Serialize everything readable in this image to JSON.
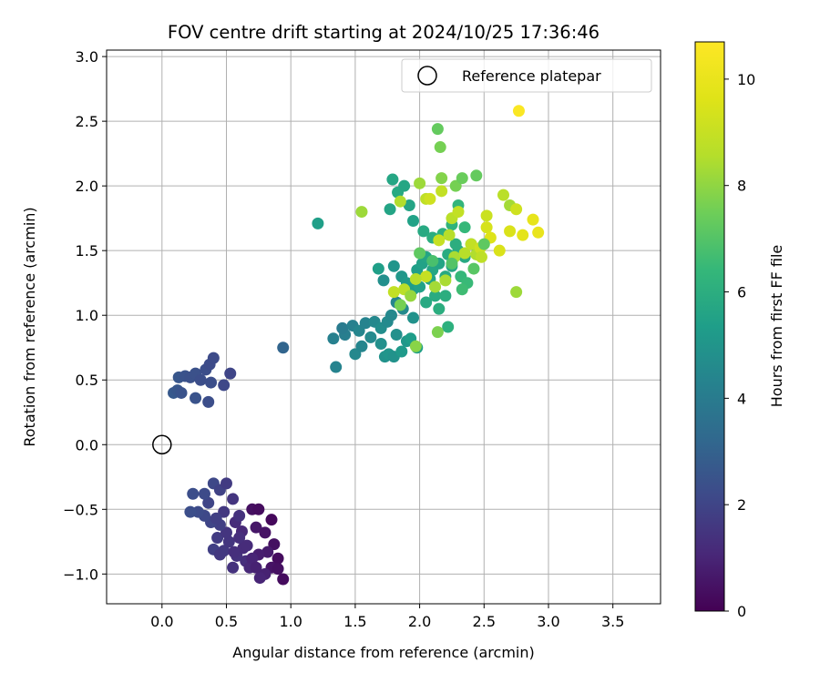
{
  "chart_data": {
    "type": "scatter",
    "title": "FOV centre drift starting at 2024/10/25 17:36:46",
    "xlabel": "Angular distance from reference (arcmin)",
    "ylabel": "Rotation from reference (arcmin)",
    "xlim": [
      -0.43,
      3.87
    ],
    "ylim": [
      -1.23,
      3.05
    ],
    "xticks": [
      "0.0",
      "0.5",
      "1.0",
      "1.5",
      "2.0",
      "2.5",
      "3.0",
      "3.5"
    ],
    "xtick_values": [
      0,
      0.5,
      1.0,
      1.5,
      2.0,
      2.5,
      3.0,
      3.5
    ],
    "yticks": [
      "−1.0",
      "−0.5",
      "0.0",
      "0.5",
      "1.0",
      "1.5",
      "2.0",
      "2.5",
      "3.0"
    ],
    "ytick_values": [
      -1.0,
      -0.5,
      0,
      0.5,
      1.0,
      1.5,
      2.0,
      2.5,
      3.0
    ],
    "grid": true,
    "legend": {
      "placement": "top-right",
      "entries": [
        "Reference platepar"
      ]
    },
    "reference_point": {
      "x": 0,
      "y": 0
    },
    "colorbar": {
      "label": "Hours from first FF file",
      "colormap": "viridis",
      "range": [
        0,
        10.7
      ],
      "ticks": [
        "0",
        "2",
        "4",
        "6",
        "8",
        "10"
      ],
      "tick_values": [
        0,
        2,
        4,
        6,
        8,
        10
      ]
    },
    "points": [
      {
        "x": 0.57,
        "y": -0.6,
        "c": 1.2
      },
      {
        "x": 0.62,
        "y": -0.67,
        "c": 1.1
      },
      {
        "x": 0.7,
        "y": -0.5,
        "c": 0.4
      },
      {
        "x": 0.75,
        "y": -0.5,
        "c": 0.3
      },
      {
        "x": 0.85,
        "y": -0.58,
        "c": 0.2
      },
      {
        "x": 0.73,
        "y": -0.64,
        "c": 0.6
      },
      {
        "x": 0.8,
        "y": -0.68,
        "c": 0.5
      },
      {
        "x": 0.87,
        "y": -0.77,
        "c": 0.4
      },
      {
        "x": 0.9,
        "y": -0.88,
        "c": 0.3
      },
      {
        "x": 0.85,
        "y": -0.95,
        "c": 0.5
      },
      {
        "x": 0.9,
        "y": -0.96,
        "c": 0.4
      },
      {
        "x": 0.94,
        "y": -1.04,
        "c": 0.3
      },
      {
        "x": 0.8,
        "y": -1.0,
        "c": 0.9
      },
      {
        "x": 0.76,
        "y": -1.03,
        "c": 1.0
      },
      {
        "x": 0.82,
        "y": -0.83,
        "c": 0.7
      },
      {
        "x": 0.75,
        "y": -0.85,
        "c": 0.8
      },
      {
        "x": 0.65,
        "y": -0.9,
        "c": 1.3
      },
      {
        "x": 0.55,
        "y": -0.95,
        "c": 1.4
      },
      {
        "x": 0.48,
        "y": -0.82,
        "c": 1.6
      },
      {
        "x": 0.4,
        "y": -0.81,
        "c": 1.8
      },
      {
        "x": 0.43,
        "y": -0.72,
        "c": 1.7
      },
      {
        "x": 0.52,
        "y": -0.75,
        "c": 1.5
      },
      {
        "x": 0.58,
        "y": -0.86,
        "c": 1.4
      },
      {
        "x": 0.63,
        "y": -0.8,
        "c": 1.2
      },
      {
        "x": 0.68,
        "y": -0.95,
        "c": 1.1
      },
      {
        "x": 0.6,
        "y": -0.72,
        "c": 1.3
      },
      {
        "x": 0.5,
        "y": -0.68,
        "c": 1.5
      },
      {
        "x": 0.45,
        "y": -0.62,
        "c": 1.8
      },
      {
        "x": 0.38,
        "y": -0.6,
        "c": 2.0
      },
      {
        "x": 0.33,
        "y": -0.55,
        "c": 2.1
      },
      {
        "x": 0.28,
        "y": -0.52,
        "c": 2.2
      },
      {
        "x": 0.22,
        "y": -0.52,
        "c": 2.3
      },
      {
        "x": 0.36,
        "y": -0.45,
        "c": 2.0
      },
      {
        "x": 0.4,
        "y": -0.3,
        "c": 2.1
      },
      {
        "x": 0.45,
        "y": -0.35,
        "c": 1.9
      },
      {
        "x": 0.33,
        "y": -0.38,
        "c": 2.2
      },
      {
        "x": 0.24,
        "y": -0.38,
        "c": 2.3
      },
      {
        "x": 0.5,
        "y": -0.3,
        "c": 1.7
      },
      {
        "x": 0.55,
        "y": -0.42,
        "c": 1.5
      },
      {
        "x": 0.48,
        "y": -0.52,
        "c": 1.6
      },
      {
        "x": 0.42,
        "y": -0.57,
        "c": 1.8
      },
      {
        "x": 0.6,
        "y": -0.55,
        "c": 1.4
      },
      {
        "x": 0.66,
        "y": -0.78,
        "c": 1.2
      },
      {
        "x": 0.7,
        "y": -0.88,
        "c": 1.0
      },
      {
        "x": 0.73,
        "y": -0.95,
        "c": 0.9
      },
      {
        "x": 0.56,
        "y": -0.83,
        "c": 1.3
      },
      {
        "x": 0.45,
        "y": -0.85,
        "c": 1.6
      },
      {
        "x": 0.09,
        "y": 0.4,
        "c": 2.7
      },
      {
        "x": 0.12,
        "y": 0.42,
        "c": 2.6
      },
      {
        "x": 0.15,
        "y": 0.4,
        "c": 2.5
      },
      {
        "x": 0.13,
        "y": 0.52,
        "c": 2.6
      },
      {
        "x": 0.18,
        "y": 0.53,
        "c": 2.5
      },
      {
        "x": 0.22,
        "y": 0.52,
        "c": 2.4
      },
      {
        "x": 0.26,
        "y": 0.55,
        "c": 2.4
      },
      {
        "x": 0.3,
        "y": 0.5,
        "c": 2.3
      },
      {
        "x": 0.34,
        "y": 0.58,
        "c": 2.3
      },
      {
        "x": 0.37,
        "y": 0.62,
        "c": 2.2
      },
      {
        "x": 0.4,
        "y": 0.67,
        "c": 2.2
      },
      {
        "x": 0.38,
        "y": 0.48,
        "c": 2.3
      },
      {
        "x": 0.48,
        "y": 0.46,
        "c": 2.1
      },
      {
        "x": 0.53,
        "y": 0.55,
        "c": 2.0
      },
      {
        "x": 0.26,
        "y": 0.36,
        "c": 2.5
      },
      {
        "x": 0.36,
        "y": 0.33,
        "c": 2.3
      },
      {
        "x": 0.94,
        "y": 0.75,
        "c": 3.1
      },
      {
        "x": 1.21,
        "y": 1.71,
        "c": 5.4
      },
      {
        "x": 1.35,
        "y": 0.6,
        "c": 4.3
      },
      {
        "x": 1.33,
        "y": 0.82,
        "c": 4.2
      },
      {
        "x": 1.42,
        "y": 0.85,
        "c": 4.1
      },
      {
        "x": 1.4,
        "y": 0.9,
        "c": 4.0
      },
      {
        "x": 1.48,
        "y": 0.92,
        "c": 4.2
      },
      {
        "x": 1.53,
        "y": 0.88,
        "c": 4.4
      },
      {
        "x": 1.58,
        "y": 0.94,
        "c": 4.3
      },
      {
        "x": 1.5,
        "y": 0.7,
        "c": 4.5
      },
      {
        "x": 1.55,
        "y": 0.76,
        "c": 4.4
      },
      {
        "x": 1.62,
        "y": 0.83,
        "c": 4.6
      },
      {
        "x": 1.65,
        "y": 0.95,
        "c": 4.5
      },
      {
        "x": 1.7,
        "y": 0.78,
        "c": 4.8
      },
      {
        "x": 1.73,
        "y": 0.68,
        "c": 4.9
      },
      {
        "x": 1.76,
        "y": 0.7,
        "c": 5.0
      },
      {
        "x": 1.8,
        "y": 0.68,
        "c": 4.9
      },
      {
        "x": 1.7,
        "y": 0.9,
        "c": 4.7
      },
      {
        "x": 1.75,
        "y": 0.95,
        "c": 4.6
      },
      {
        "x": 1.82,
        "y": 0.85,
        "c": 4.8
      },
      {
        "x": 1.86,
        "y": 0.72,
        "c": 5.2
      },
      {
        "x": 1.9,
        "y": 0.8,
        "c": 5.1
      },
      {
        "x": 1.95,
        "y": 0.98,
        "c": 4.9
      },
      {
        "x": 1.93,
        "y": 0.82,
        "c": 5.3
      },
      {
        "x": 1.98,
        "y": 0.75,
        "c": 5.4
      },
      {
        "x": 1.78,
        "y": 1.0,
        "c": 4.5
      },
      {
        "x": 1.82,
        "y": 1.1,
        "c": 4.4
      },
      {
        "x": 1.87,
        "y": 1.05,
        "c": 4.6
      },
      {
        "x": 1.72,
        "y": 1.27,
        "c": 4.8
      },
      {
        "x": 1.8,
        "y": 1.38,
        "c": 5.0
      },
      {
        "x": 1.86,
        "y": 1.3,
        "c": 5.1
      },
      {
        "x": 1.9,
        "y": 1.25,
        "c": 5.2
      },
      {
        "x": 1.95,
        "y": 1.2,
        "c": 5.3
      },
      {
        "x": 1.98,
        "y": 1.35,
        "c": 5.4
      },
      {
        "x": 2.02,
        "y": 1.4,
        "c": 5.5
      },
      {
        "x": 2.05,
        "y": 1.45,
        "c": 5.6
      },
      {
        "x": 2.1,
        "y": 1.35,
        "c": 5.7
      },
      {
        "x": 2.15,
        "y": 1.4,
        "c": 5.6
      },
      {
        "x": 2.2,
        "y": 1.3,
        "c": 5.8
      },
      {
        "x": 2.25,
        "y": 1.38,
        "c": 5.7
      },
      {
        "x": 2.3,
        "y": 1.5,
        "c": 5.9
      },
      {
        "x": 2.35,
        "y": 1.45,
        "c": 5.8
      },
      {
        "x": 2.28,
        "y": 1.55,
        "c": 6.0
      },
      {
        "x": 2.22,
        "y": 1.47,
        "c": 5.9
      },
      {
        "x": 2.08,
        "y": 1.28,
        "c": 5.6
      },
      {
        "x": 2.0,
        "y": 1.22,
        "c": 5.5
      },
      {
        "x": 2.12,
        "y": 1.15,
        "c": 5.9
      },
      {
        "x": 2.2,
        "y": 1.15,
        "c": 6.0
      },
      {
        "x": 2.22,
        "y": 0.91,
        "c": 6.1
      },
      {
        "x": 2.15,
        "y": 1.05,
        "c": 6.0
      },
      {
        "x": 2.05,
        "y": 1.1,
        "c": 5.8
      },
      {
        "x": 1.68,
        "y": 1.36,
        "c": 5.4
      },
      {
        "x": 1.77,
        "y": 1.82,
        "c": 5.6
      },
      {
        "x": 1.79,
        "y": 2.05,
        "c": 5.7
      },
      {
        "x": 1.83,
        "y": 1.95,
        "c": 5.8
      },
      {
        "x": 1.88,
        "y": 2.0,
        "c": 5.7
      },
      {
        "x": 1.92,
        "y": 1.85,
        "c": 5.6
      },
      {
        "x": 1.95,
        "y": 1.73,
        "c": 5.5
      },
      {
        "x": 2.03,
        "y": 1.65,
        "c": 5.8
      },
      {
        "x": 2.1,
        "y": 1.6,
        "c": 6.0
      },
      {
        "x": 2.18,
        "y": 1.63,
        "c": 6.1
      },
      {
        "x": 2.25,
        "y": 1.7,
        "c": 6.2
      },
      {
        "x": 2.3,
        "y": 1.85,
        "c": 6.3
      },
      {
        "x": 2.35,
        "y": 1.68,
        "c": 6.4
      },
      {
        "x": 2.4,
        "y": 1.55,
        "c": 6.5
      },
      {
        "x": 2.45,
        "y": 1.5,
        "c": 6.6
      },
      {
        "x": 2.32,
        "y": 1.3,
        "c": 6.4
      },
      {
        "x": 2.37,
        "y": 1.25,
        "c": 6.5
      },
      {
        "x": 2.33,
        "y": 1.2,
        "c": 6.6
      },
      {
        "x": 2.14,
        "y": 2.44,
        "c": 7.3
      },
      {
        "x": 2.16,
        "y": 2.3,
        "c": 7.6
      },
      {
        "x": 2.17,
        "y": 2.06,
        "c": 7.8
      },
      {
        "x": 2.28,
        "y": 2.0,
        "c": 7.6
      },
      {
        "x": 2.33,
        "y": 2.06,
        "c": 7.4
      },
      {
        "x": 2.44,
        "y": 2.08,
        "c": 7.3
      },
      {
        "x": 2.0,
        "y": 2.02,
        "c": 8.2
      },
      {
        "x": 2.05,
        "y": 1.9,
        "c": 8.8
      },
      {
        "x": 2.08,
        "y": 1.9,
        "c": 9.2
      },
      {
        "x": 2.17,
        "y": 1.96,
        "c": 8.9
      },
      {
        "x": 1.55,
        "y": 1.8,
        "c": 8.2
      },
      {
        "x": 1.85,
        "y": 1.88,
        "c": 8.5
      },
      {
        "x": 2.25,
        "y": 1.75,
        "c": 8.7
      },
      {
        "x": 2.3,
        "y": 1.8,
        "c": 8.9
      },
      {
        "x": 2.23,
        "y": 1.62,
        "c": 8.6
      },
      {
        "x": 2.15,
        "y": 1.58,
        "c": 9.0
      },
      {
        "x": 2.27,
        "y": 1.45,
        "c": 8.4
      },
      {
        "x": 2.35,
        "y": 1.48,
        "c": 8.6
      },
      {
        "x": 2.4,
        "y": 1.55,
        "c": 8.9
      },
      {
        "x": 2.44,
        "y": 1.47,
        "c": 8.5
      },
      {
        "x": 2.47,
        "y": 1.52,
        "c": 9.2
      },
      {
        "x": 2.52,
        "y": 1.68,
        "c": 9.4
      },
      {
        "x": 2.55,
        "y": 1.6,
        "c": 9.6
      },
      {
        "x": 2.62,
        "y": 1.5,
        "c": 9.5
      },
      {
        "x": 2.52,
        "y": 1.77,
        "c": 9.1
      },
      {
        "x": 2.65,
        "y": 1.93,
        "c": 8.7
      },
      {
        "x": 2.7,
        "y": 1.85,
        "c": 8.3
      },
      {
        "x": 2.75,
        "y": 1.82,
        "c": 9.2
      },
      {
        "x": 2.7,
        "y": 1.65,
        "c": 9.5
      },
      {
        "x": 2.8,
        "y": 1.62,
        "c": 9.8
      },
      {
        "x": 2.88,
        "y": 1.74,
        "c": 9.9
      },
      {
        "x": 2.92,
        "y": 1.64,
        "c": 10.0
      },
      {
        "x": 2.75,
        "y": 1.18,
        "c": 8.2
      },
      {
        "x": 2.48,
        "y": 1.45,
        "c": 8.8
      },
      {
        "x": 2.2,
        "y": 1.27,
        "c": 8.4
      },
      {
        "x": 2.12,
        "y": 1.22,
        "c": 8.3
      },
      {
        "x": 2.05,
        "y": 1.3,
        "c": 9.0
      },
      {
        "x": 1.97,
        "y": 1.28,
        "c": 8.6
      },
      {
        "x": 1.88,
        "y": 1.2,
        "c": 8.7
      },
      {
        "x": 1.8,
        "y": 1.18,
        "c": 8.9
      },
      {
        "x": 1.93,
        "y": 1.15,
        "c": 8.1
      },
      {
        "x": 2.14,
        "y": 0.87,
        "c": 7.7
      },
      {
        "x": 1.97,
        "y": 0.76,
        "c": 7.9
      },
      {
        "x": 1.85,
        "y": 1.08,
        "c": 7.6
      },
      {
        "x": 2.0,
        "y": 1.48,
        "c": 7.2
      },
      {
        "x": 2.1,
        "y": 1.42,
        "c": 6.8
      },
      {
        "x": 2.25,
        "y": 1.4,
        "c": 7.0
      },
      {
        "x": 2.42,
        "y": 1.36,
        "c": 7.1
      },
      {
        "x": 2.5,
        "y": 1.55,
        "c": 7.2
      },
      {
        "x": 2.77,
        "y": 2.58,
        "c": 10.6
      }
    ]
  }
}
